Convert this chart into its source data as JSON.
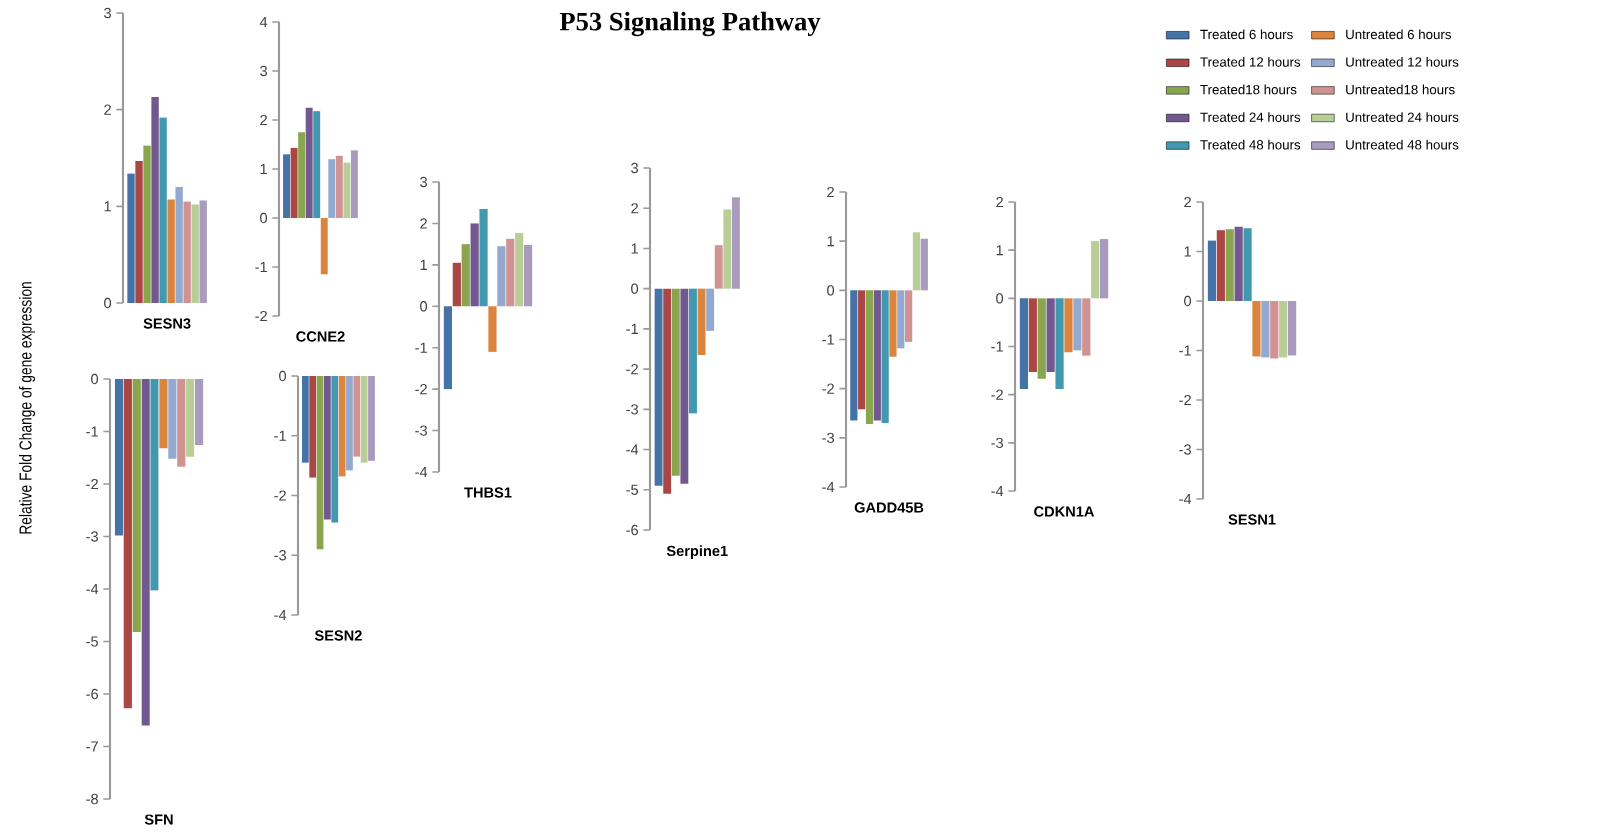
{
  "chart_data": [
    {
      "type": "bar",
      "ylabel": "Relative Fold Change of gene expression",
      "categories": [
        "SESN3"
      ],
      "ylim": [
        0,
        3
      ],
      "yticks": [
        0,
        1,
        2,
        3
      ],
      "series": [
        {
          "color": "#4572a7",
          "values": [
            1.34
          ]
        },
        {
          "color": "#aa4643",
          "values": [
            1.47
          ]
        },
        {
          "color": "#89a54e",
          "values": [
            1.63
          ]
        },
        {
          "color": "#71588f",
          "values": [
            2.13
          ]
        },
        {
          "color": "#4198af",
          "values": [
            1.92
          ]
        },
        {
          "color": "#db843d",
          "values": [
            1.07
          ]
        },
        {
          "color": "#93a9cf",
          "values": [
            1.2
          ]
        },
        {
          "color": "#d19392",
          "values": [
            1.05
          ]
        },
        {
          "color": "#b9cd96",
          "values": [
            1.02
          ]
        },
        {
          "color": "#a99bbd",
          "values": [
            1.06
          ]
        }
      ]
    },
    {
      "type": "bar",
      "categories": [
        "CCNE2"
      ],
      "ylim": [
        -2,
        4
      ],
      "yticks": [
        -2,
        -1,
        0,
        1,
        2,
        3,
        4
      ],
      "series": [
        {
          "color": "#4572a7",
          "values": [
            1.3
          ]
        },
        {
          "color": "#aa4643",
          "values": [
            1.43
          ]
        },
        {
          "color": "#89a54e",
          "values": [
            1.75
          ]
        },
        {
          "color": "#71588f",
          "values": [
            2.25
          ]
        },
        {
          "color": "#4198af",
          "values": [
            2.18
          ]
        },
        {
          "color": "#db843d",
          "values": [
            -1.15
          ]
        },
        {
          "color": "#93a9cf",
          "values": [
            1.2
          ]
        },
        {
          "color": "#d19392",
          "values": [
            1.27
          ]
        },
        {
          "color": "#b9cd96",
          "values": [
            1.13
          ]
        },
        {
          "color": "#a99bbd",
          "values": [
            1.38
          ]
        }
      ]
    },
    {
      "type": "bar",
      "categories": [
        "THBS1"
      ],
      "ylim": [
        -4,
        3
      ],
      "yticks": [
        -4,
        -3,
        -2,
        -1,
        0,
        1,
        2,
        3
      ],
      "series": [
        {
          "color": "#4572a7",
          "values": [
            -2.0
          ]
        },
        {
          "color": "#aa4643",
          "values": [
            1.05
          ]
        },
        {
          "color": "#89a54e",
          "values": [
            1.5
          ]
        },
        {
          "color": "#71588f",
          "values": [
            2.0
          ]
        },
        {
          "color": "#4198af",
          "values": [
            2.35
          ]
        },
        {
          "color": "#db843d",
          "values": [
            -1.1
          ]
        },
        {
          "color": "#93a9cf",
          "values": [
            1.45
          ]
        },
        {
          "color": "#d19392",
          "values": [
            1.63
          ]
        },
        {
          "color": "#b9cd96",
          "values": [
            1.77
          ]
        },
        {
          "color": "#a99bbd",
          "values": [
            1.48
          ]
        }
      ]
    },
    {
      "type": "bar",
      "title": "P53 Signaling Pathway",
      "categories": [
        "Serpine1"
      ],
      "ylim": [
        -6,
        3
      ],
      "yticks": [
        -6,
        -5,
        -4,
        -3,
        -2,
        -1,
        0,
        1,
        2,
        3
      ],
      "series": [
        {
          "color": "#4572a7",
          "values": [
            -4.9
          ]
        },
        {
          "color": "#aa4643",
          "values": [
            -5.1
          ]
        },
        {
          "color": "#89a54e",
          "values": [
            -4.65
          ]
        },
        {
          "color": "#71588f",
          "values": [
            -4.85
          ]
        },
        {
          "color": "#4198af",
          "values": [
            -3.1
          ]
        },
        {
          "color": "#db843d",
          "values": [
            -1.65
          ]
        },
        {
          "color": "#93a9cf",
          "values": [
            -1.05
          ]
        },
        {
          "color": "#d19392",
          "values": [
            1.08
          ]
        },
        {
          "color": "#b9cd96",
          "values": [
            1.97
          ]
        },
        {
          "color": "#a99bbd",
          "values": [
            2.27
          ]
        }
      ]
    },
    {
      "type": "bar",
      "categories": [
        "GADD45B"
      ],
      "ylim": [
        -4,
        2
      ],
      "yticks": [
        -4,
        -3,
        -2,
        -1,
        0,
        1,
        2
      ],
      "series": [
        {
          "color": "#4572a7",
          "values": [
            -2.65
          ]
        },
        {
          "color": "#aa4643",
          "values": [
            -2.42
          ]
        },
        {
          "color": "#89a54e",
          "values": [
            -2.72
          ]
        },
        {
          "color": "#71588f",
          "values": [
            -2.65
          ]
        },
        {
          "color": "#4198af",
          "values": [
            -2.7
          ]
        },
        {
          "color": "#db843d",
          "values": [
            -1.35
          ]
        },
        {
          "color": "#93a9cf",
          "values": [
            -1.18
          ]
        },
        {
          "color": "#d19392",
          "values": [
            -1.05
          ]
        },
        {
          "color": "#b9cd96",
          "values": [
            1.18
          ]
        },
        {
          "color": "#a99bbd",
          "values": [
            1.05
          ]
        }
      ]
    },
    {
      "type": "bar",
      "categories": [
        "CDKN1A"
      ],
      "ylim": [
        -4,
        2
      ],
      "yticks": [
        -4,
        -3,
        -2,
        -1,
        0,
        1,
        2
      ],
      "series": [
        {
          "color": "#4572a7",
          "values": [
            -1.88
          ]
        },
        {
          "color": "#aa4643",
          "values": [
            -1.53
          ]
        },
        {
          "color": "#89a54e",
          "values": [
            -1.67
          ]
        },
        {
          "color": "#71588f",
          "values": [
            -1.53
          ]
        },
        {
          "color": "#4198af",
          "values": [
            -1.88
          ]
        },
        {
          "color": "#db843d",
          "values": [
            -1.12
          ]
        },
        {
          "color": "#93a9cf",
          "values": [
            -1.08
          ]
        },
        {
          "color": "#d19392",
          "values": [
            -1.19
          ]
        },
        {
          "color": "#b9cd96",
          "values": [
            1.19
          ]
        },
        {
          "color": "#a99bbd",
          "values": [
            1.23
          ]
        }
      ]
    },
    {
      "type": "bar",
      "categories": [
        "SESN1"
      ],
      "ylim": [
        -4,
        2
      ],
      "yticks": [
        -4,
        -3,
        -2,
        -1,
        0,
        1,
        2
      ],
      "legend": "top right",
      "series": [
        {
          "name": "Treated 6 hours",
          "color": "#4572a7",
          "values": [
            1.22
          ]
        },
        {
          "name": "Treated 12 hours",
          "color": "#aa4643",
          "values": [
            1.43
          ]
        },
        {
          "name": "Treated18 hours",
          "color": "#89a54e",
          "values": [
            1.45
          ]
        },
        {
          "name": "Treated 24 hours",
          "color": "#71588f",
          "values": [
            1.5
          ]
        },
        {
          "name": "Treated 48 hours",
          "color": "#4198af",
          "values": [
            1.47
          ]
        },
        {
          "name": "Untreated 6 hours",
          "color": "#db843d",
          "values": [
            -1.12
          ]
        },
        {
          "name": "Untreated 12 hours",
          "color": "#93a9cf",
          "values": [
            -1.14
          ]
        },
        {
          "name": "Untreated18 hours",
          "color": "#d19392",
          "values": [
            -1.16
          ]
        },
        {
          "name": "Untreated 24 hours",
          "color": "#b9cd96",
          "values": [
            -1.14
          ]
        },
        {
          "name": "Untreated 48 hours",
          "color": "#a99bbd",
          "values": [
            -1.1
          ]
        }
      ]
    },
    {
      "type": "bar",
      "categories": [
        "SFN"
      ],
      "ylim": [
        -8,
        0
      ],
      "yticks": [
        -8,
        -7,
        -6,
        -5,
        -4,
        -3,
        -2,
        -1,
        0
      ],
      "series": [
        {
          "color": "#4572a7",
          "values": [
            -2.98
          ]
        },
        {
          "color": "#aa4643",
          "values": [
            -6.27
          ]
        },
        {
          "color": "#89a54e",
          "values": [
            -4.82
          ]
        },
        {
          "color": "#71588f",
          "values": [
            -6.6
          ]
        },
        {
          "color": "#4198af",
          "values": [
            -4.03
          ]
        },
        {
          "color": "#db843d",
          "values": [
            -1.32
          ]
        },
        {
          "color": "#93a9cf",
          "values": [
            -1.52
          ]
        },
        {
          "color": "#d19392",
          "values": [
            -1.67
          ]
        },
        {
          "color": "#b9cd96",
          "values": [
            -1.48
          ]
        },
        {
          "color": "#a99bbd",
          "values": [
            -1.26
          ]
        }
      ]
    },
    {
      "type": "bar",
      "categories": [
        "SESN2"
      ],
      "ylim": [
        -4,
        0
      ],
      "yticks": [
        -4,
        -3,
        -2,
        -1,
        0
      ],
      "series": [
        {
          "color": "#4572a7",
          "values": [
            -1.45
          ]
        },
        {
          "color": "#aa4643",
          "values": [
            -1.7
          ]
        },
        {
          "color": "#89a54e",
          "values": [
            -2.9
          ]
        },
        {
          "color": "#71588f",
          "values": [
            -2.4
          ]
        },
        {
          "color": "#4198af",
          "values": [
            -2.45
          ]
        },
        {
          "color": "#db843d",
          "values": [
            -1.68
          ]
        },
        {
          "color": "#93a9cf",
          "values": [
            -1.58
          ]
        },
        {
          "color": "#d19392",
          "values": [
            -1.35
          ]
        },
        {
          "color": "#b9cd96",
          "values": [
            -1.45
          ]
        },
        {
          "color": "#a99bbd",
          "values": [
            -1.42
          ]
        }
      ]
    }
  ]
}
